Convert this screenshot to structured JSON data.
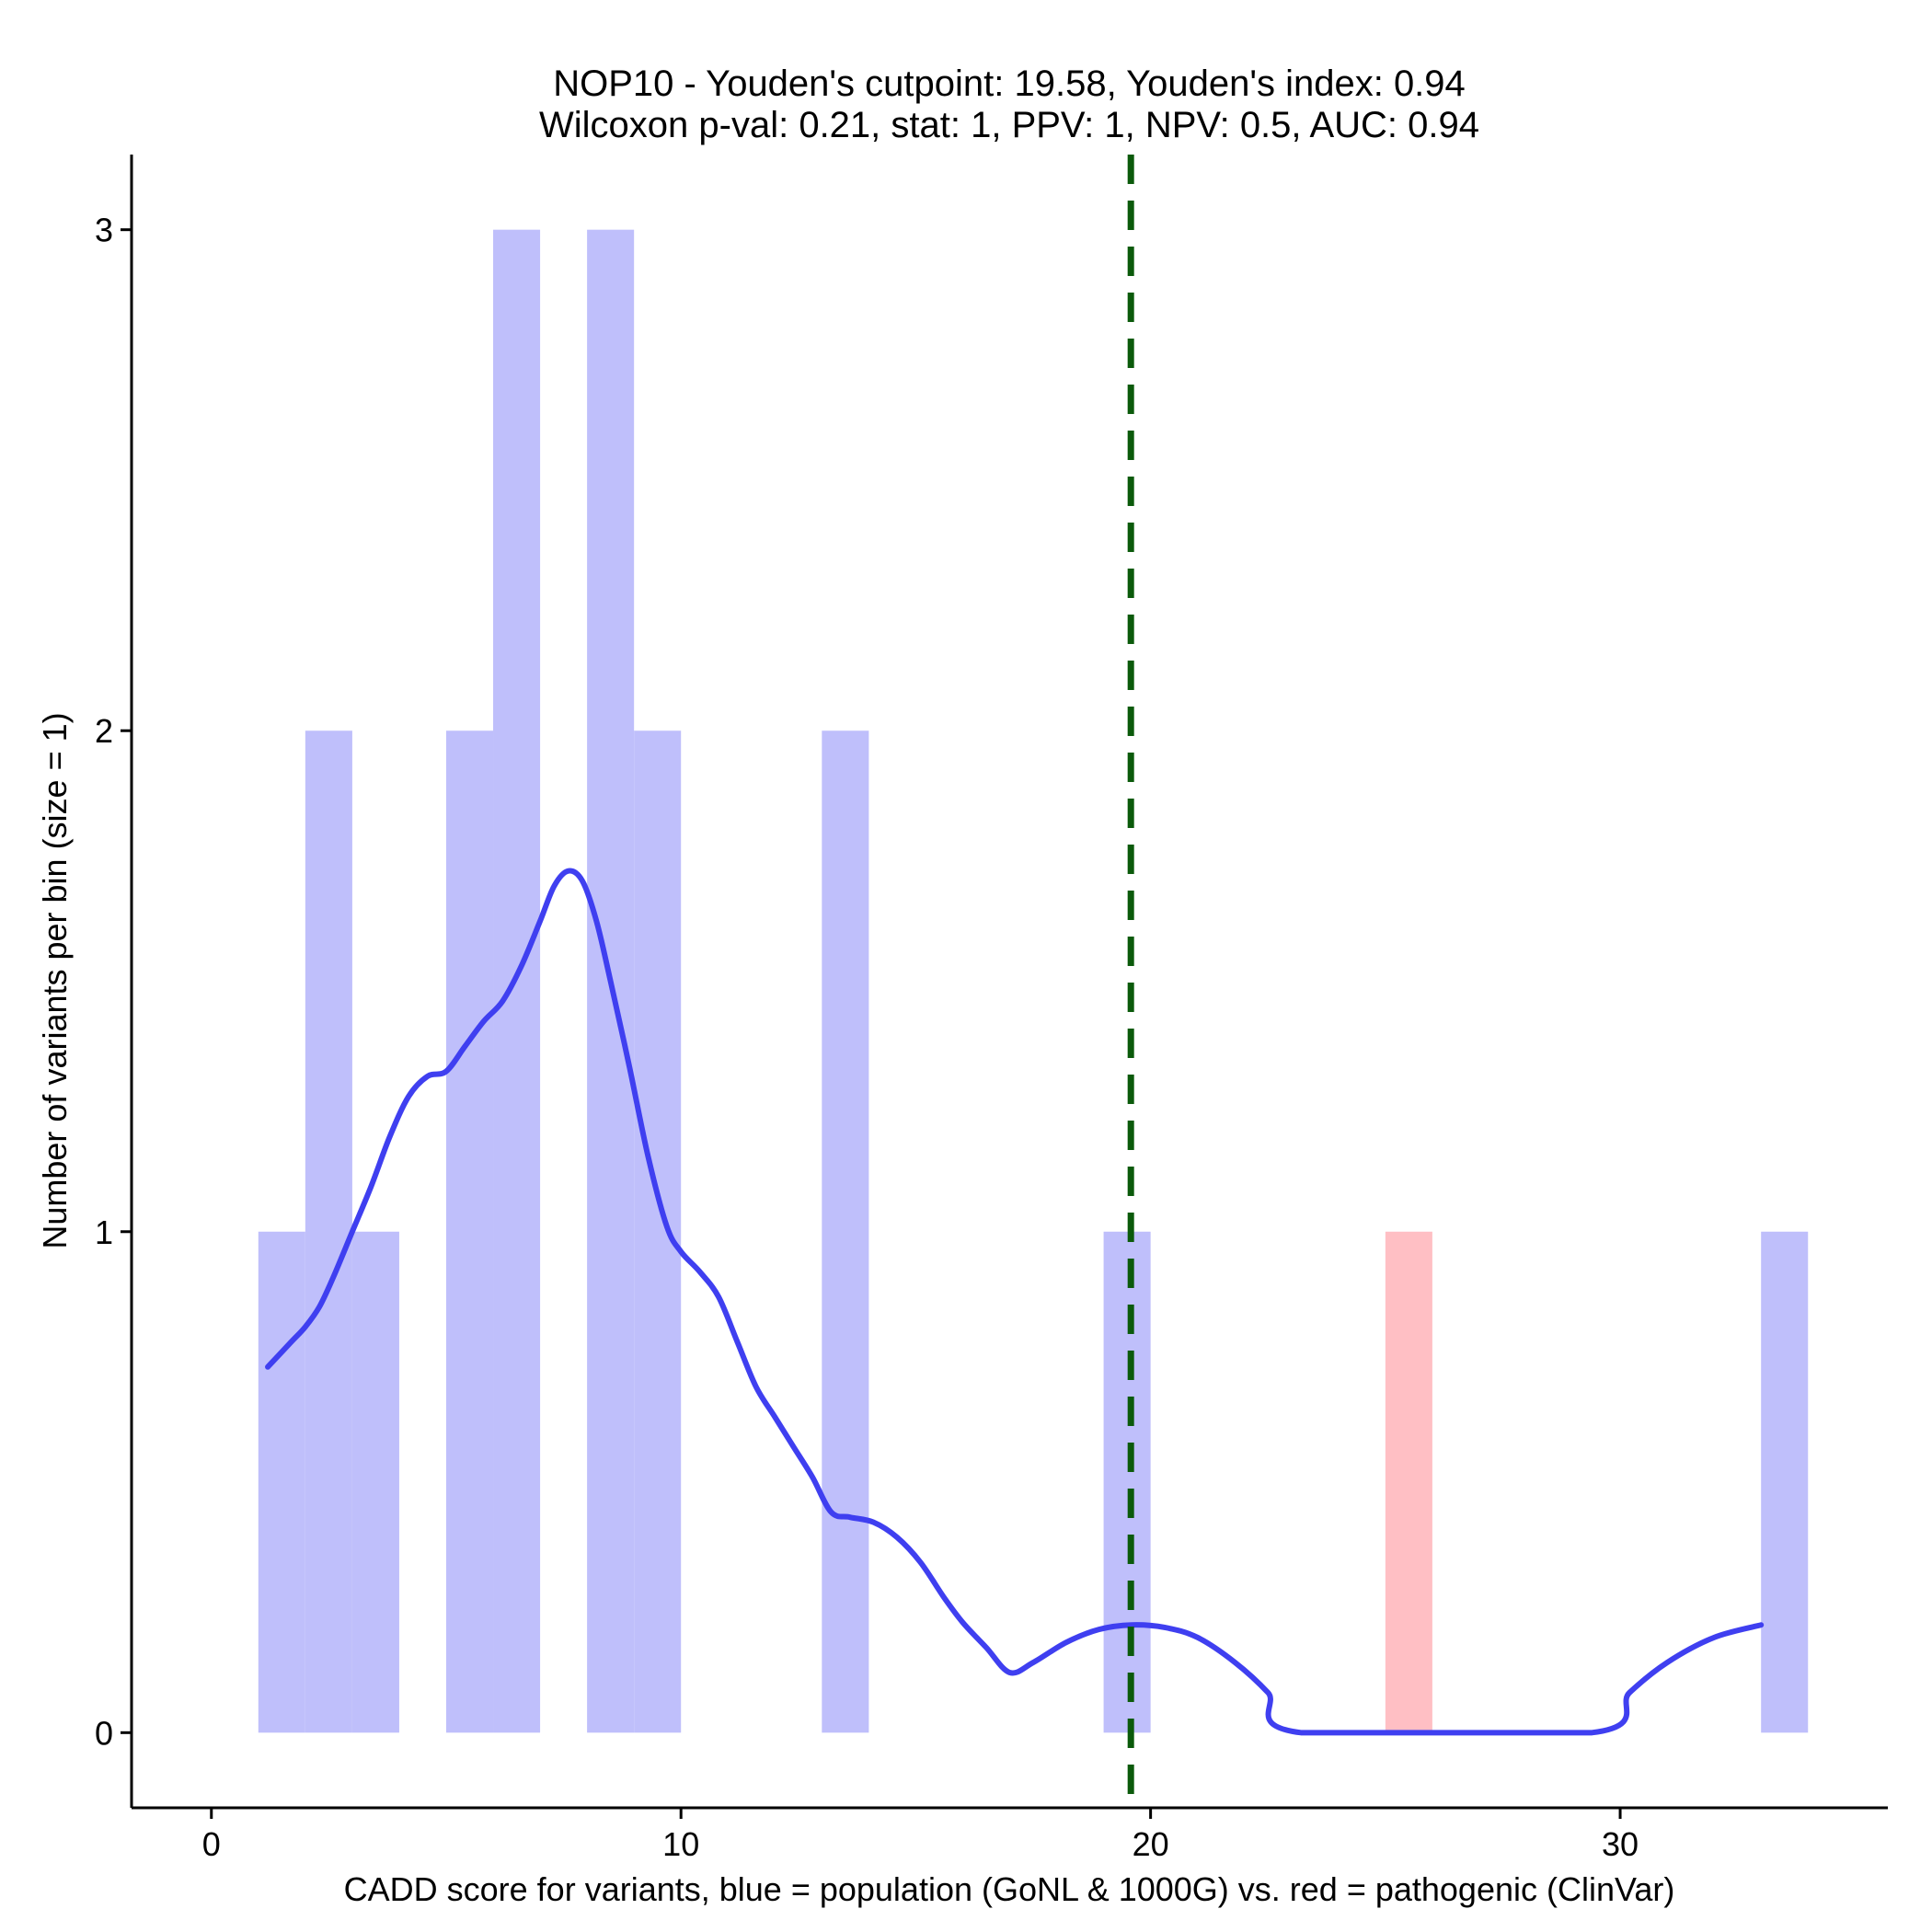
{
  "chart_data": {
    "type": "bar",
    "title_line1": "NOP10 - Youden's cutpoint: 19.58, Youden's index: 0.94",
    "title_line2": "Wilcoxon p-val: 0.21, stat: 1, PPV: 1, NPV: 0.5, AUC: 0.94",
    "xlabel": "CADD score for variants, blue = population (GoNL & 1000G) vs. red = pathogenic (ClinVar)",
    "ylabel": "Number of variants per bin (size = 1)",
    "xlim": [
      -1.7,
      35.7
    ],
    "ylim": [
      -0.15,
      3.15
    ],
    "x_ticks": [
      0,
      10,
      20,
      30
    ],
    "y_ticks": [
      0,
      1,
      2,
      3
    ],
    "bin_width": 1,
    "series": [
      {
        "name": "population",
        "color": "#bfbffb",
        "bins": [
          {
            "start": 1,
            "count": 1
          },
          {
            "start": 2,
            "count": 2
          },
          {
            "start": 3,
            "count": 1
          },
          {
            "start": 5,
            "count": 2
          },
          {
            "start": 6,
            "count": 3
          },
          {
            "start": 8,
            "count": 3
          },
          {
            "start": 9,
            "count": 2
          },
          {
            "start": 13,
            "count": 2
          },
          {
            "start": 19,
            "count": 1
          },
          {
            "start": 33,
            "count": 1
          }
        ]
      },
      {
        "name": "pathogenic",
        "color": "#ffbfc4",
        "bins": [
          {
            "start": 25,
            "count": 1
          }
        ]
      }
    ],
    "density_curve": {
      "color": "#3f3ff0",
      "points": [
        [
          1.2,
          0.73
        ],
        [
          1.7,
          0.78
        ],
        [
          2.0,
          0.81
        ],
        [
          2.3,
          0.85
        ],
        [
          2.6,
          0.91
        ],
        [
          3.0,
          1.0
        ],
        [
          3.4,
          1.09
        ],
        [
          3.8,
          1.19
        ],
        [
          4.2,
          1.27
        ],
        [
          4.6,
          1.31
        ],
        [
          5.0,
          1.32
        ],
        [
          5.4,
          1.37
        ],
        [
          5.8,
          1.42
        ],
        [
          6.2,
          1.46
        ],
        [
          6.6,
          1.53
        ],
        [
          7.0,
          1.62
        ],
        [
          7.3,
          1.69
        ],
        [
          7.6,
          1.72
        ],
        [
          7.9,
          1.7
        ],
        [
          8.2,
          1.62
        ],
        [
          8.5,
          1.5
        ],
        [
          8.9,
          1.33
        ],
        [
          9.3,
          1.15
        ],
        [
          9.7,
          1.01
        ],
        [
          10.0,
          0.96
        ],
        [
          10.4,
          0.92
        ],
        [
          10.8,
          0.87
        ],
        [
          11.2,
          0.78
        ],
        [
          11.6,
          0.69
        ],
        [
          12.0,
          0.63
        ],
        [
          12.4,
          0.57
        ],
        [
          12.8,
          0.51
        ],
        [
          13.2,
          0.44
        ],
        [
          13.6,
          0.43
        ],
        [
          14.1,
          0.42
        ],
        [
          14.6,
          0.39
        ],
        [
          15.1,
          0.34
        ],
        [
          15.6,
          0.27
        ],
        [
          16.0,
          0.22
        ],
        [
          16.5,
          0.17
        ],
        [
          17.0,
          0.12
        ],
        [
          17.5,
          0.14
        ],
        [
          18.2,
          0.18
        ],
        [
          18.9,
          0.206
        ],
        [
          19.6,
          0.215
        ],
        [
          20.3,
          0.21
        ],
        [
          21.0,
          0.19
        ],
        [
          21.8,
          0.14
        ],
        [
          22.5,
          0.08
        ],
        [
          23.2,
          0.0
        ],
        [
          29.4,
          0.0
        ],
        [
          30.2,
          0.08
        ],
        [
          31.0,
          0.14
        ],
        [
          32.0,
          0.19
        ],
        [
          33.0,
          0.215
        ]
      ]
    },
    "cutpoint": {
      "x": 19.58,
      "color": "#0b5a0b"
    }
  }
}
